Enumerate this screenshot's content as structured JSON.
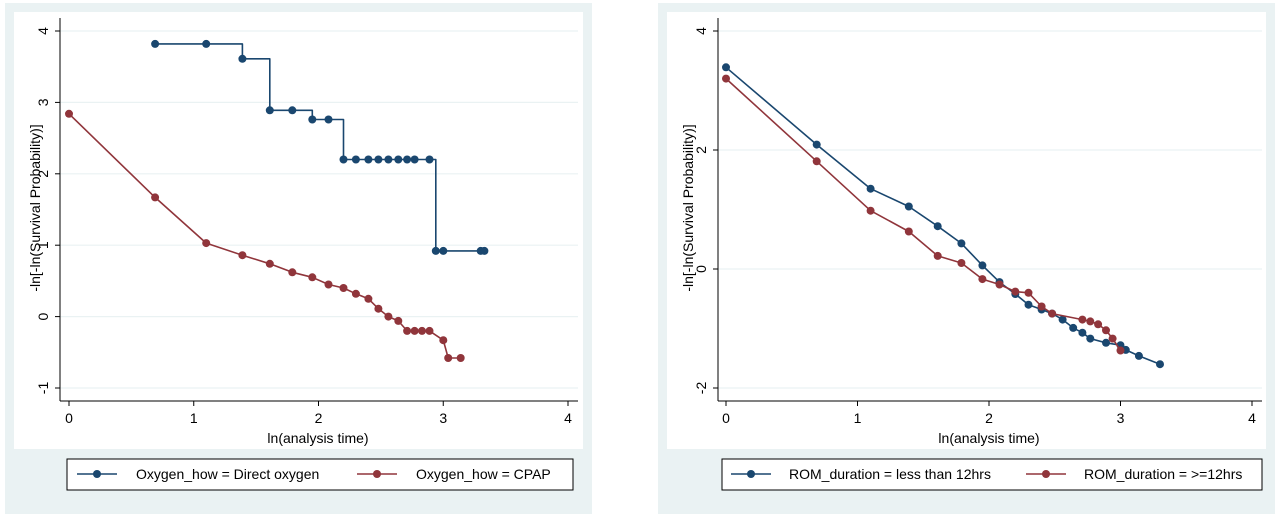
{
  "chart_data": [
    {
      "type": "line",
      "xlabel": "ln(analysis time)",
      "ylabel": "-ln[-ln(Survival Probability)]",
      "xlim": [
        0,
        4
      ],
      "ylim": [
        -1,
        4
      ],
      "x_ticks": [
        "0",
        "1",
        "2",
        "3",
        "4"
      ],
      "y_ticks": [
        "-1",
        "0",
        "1",
        "2",
        "3",
        "4"
      ],
      "x_tick_values": [
        0,
        1,
        2,
        3,
        4
      ],
      "y_tick_values": [
        -1,
        0,
        1,
        2,
        3,
        4
      ],
      "grid": true,
      "legend_position": "bottom",
      "series": [
        {
          "name": "Oxygen_how = Direct oxygen",
          "color": "#1a476f",
          "step": "post",
          "x": [
            0.69,
            1.1,
            1.39,
            1.61,
            1.79,
            1.95,
            2.08,
            2.2,
            2.3,
            2.4,
            2.48,
            2.56,
            2.64,
            2.71,
            2.77,
            2.89,
            2.94,
            3.0,
            3.3,
            3.33
          ],
          "y": [
            3.82,
            3.82,
            3.61,
            2.89,
            2.89,
            2.76,
            2.76,
            2.2,
            2.2,
            2.2,
            2.2,
            2.2,
            2.2,
            2.2,
            2.2,
            2.2,
            0.92,
            0.92,
            0.92,
            0.92
          ]
        },
        {
          "name": "Oxygen_how = CPAP",
          "color": "#90353b",
          "step": "none",
          "x": [
            0.0,
            0.69,
            1.1,
            1.39,
            1.61,
            1.79,
            1.95,
            2.08,
            2.2,
            2.3,
            2.4,
            2.48,
            2.56,
            2.64,
            2.71,
            2.77,
            2.83,
            2.89,
            3.0,
            3.04,
            3.14
          ],
          "y": [
            2.84,
            1.67,
            1.03,
            0.86,
            0.74,
            0.62,
            0.55,
            0.45,
            0.4,
            0.32,
            0.25,
            0.11,
            0.0,
            -0.06,
            -0.2,
            -0.2,
            -0.2,
            -0.2,
            -0.33,
            -0.58,
            -0.58
          ]
        }
      ]
    },
    {
      "type": "line",
      "xlabel": "ln(analysis time)",
      "ylabel": "-ln[-ln(Survival Probability)]",
      "xlim": [
        0,
        4
      ],
      "ylim": [
        -2,
        4
      ],
      "x_ticks": [
        "0",
        "1",
        "2",
        "3",
        "4"
      ],
      "y_ticks": [
        "-2",
        "0",
        "2",
        "4"
      ],
      "x_tick_values": [
        0,
        1,
        2,
        3,
        4
      ],
      "y_tick_values": [
        -2,
        0,
        2,
        4
      ],
      "grid": true,
      "legend_position": "bottom",
      "series": [
        {
          "name": "ROM_duration = less than 12hrs",
          "color": "#1a476f",
          "step": "none",
          "x": [
            0.0,
            0.69,
            1.1,
            1.39,
            1.61,
            1.79,
            1.95,
            2.08,
            2.2,
            2.3,
            2.4,
            2.48,
            2.56,
            2.64,
            2.71,
            2.77,
            2.89,
            3.0,
            3.04,
            3.14,
            3.3
          ],
          "y": [
            3.39,
            2.09,
            1.35,
            1.05,
            0.72,
            0.43,
            0.06,
            -0.22,
            -0.42,
            -0.6,
            -0.68,
            -0.75,
            -0.85,
            -0.99,
            -1.07,
            -1.17,
            -1.24,
            -1.28,
            -1.36,
            -1.46,
            -1.6
          ]
        },
        {
          "name": "ROM_duration = >=12hrs",
          "color": "#90353b",
          "step": "none",
          "x": [
            0.0,
            0.69,
            1.1,
            1.39,
            1.61,
            1.79,
            1.95,
            2.08,
            2.2,
            2.3,
            2.4,
            2.48,
            2.71,
            2.77,
            2.83,
            2.89,
            2.94,
            3.0
          ],
          "y": [
            3.2,
            1.81,
            0.98,
            0.63,
            0.22,
            0.1,
            -0.17,
            -0.26,
            -0.38,
            -0.4,
            -0.63,
            -0.75,
            -0.85,
            -0.88,
            -0.93,
            -1.03,
            -1.17,
            -1.37
          ]
        }
      ]
    }
  ]
}
